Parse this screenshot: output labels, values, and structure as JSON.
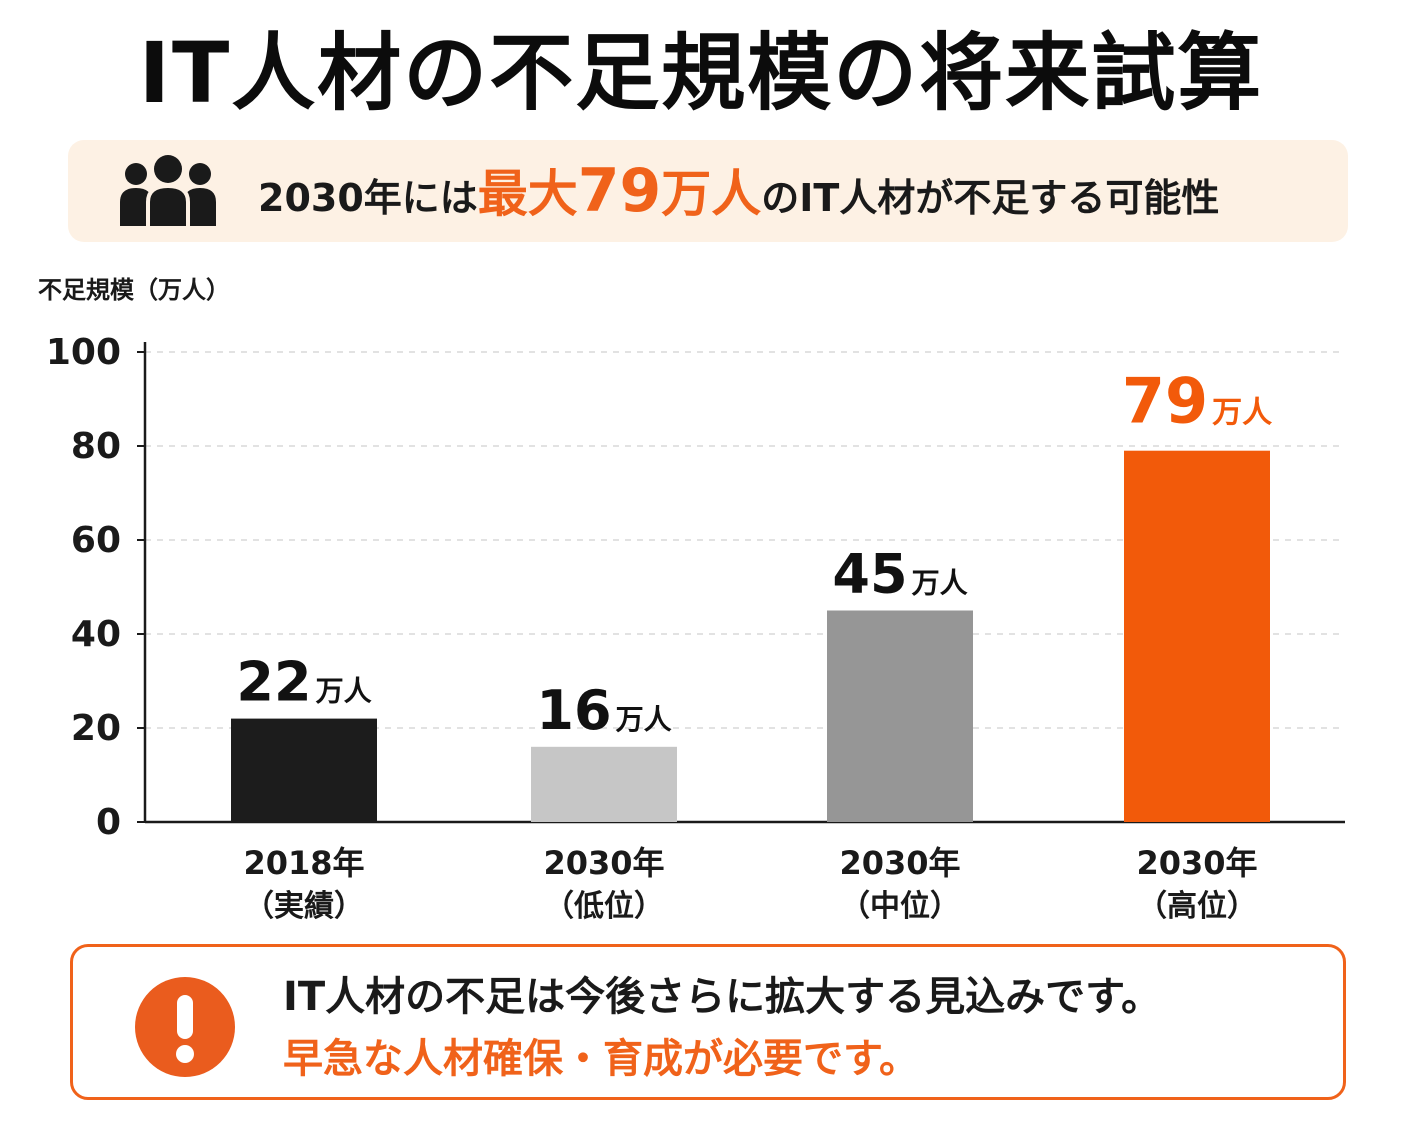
{
  "title": "IT人材の不足規模の将来試算",
  "banner": {
    "icon": "people-group-icon",
    "prefix": "2030年には",
    "highlight_pre": "最大",
    "highlight_num": "79",
    "highlight_post": "万人",
    "suffix": "のIT人材が不足する可能性",
    "accent_color": "#f0621a",
    "background_color": "#fdf1e4"
  },
  "chart_data": {
    "type": "bar",
    "ylabel": "不足規模（万人）",
    "ylim": [
      0,
      100
    ],
    "yticks": [
      0,
      20,
      40,
      60,
      80,
      100
    ],
    "grid": "horizontal dashed",
    "categories": [
      {
        "line1": "2018年",
        "line2": "（実績）"
      },
      {
        "line1": "2030年",
        "line2": "（低位）"
      },
      {
        "line1": "2030年",
        "line2": "（中位）"
      },
      {
        "line1": "2030年",
        "line2": "（高位）"
      }
    ],
    "values": [
      22,
      16,
      45,
      79
    ],
    "value_labels": [
      "22",
      "16",
      "45",
      "79"
    ],
    "value_unit": "万人",
    "bar_colors": [
      "#1c1c1c",
      "#c6c6c6",
      "#969696",
      "#f25a0a"
    ],
    "label_colors": [
      "#111111",
      "#111111",
      "#111111",
      "#f25a0a"
    ]
  },
  "callout": {
    "icon": "exclamation-icon",
    "line1": "IT人材の不足は今後さらに拡大する見込みです。",
    "line2": "早急な人材確保・育成が必要です。",
    "border_color": "#f0621a"
  }
}
